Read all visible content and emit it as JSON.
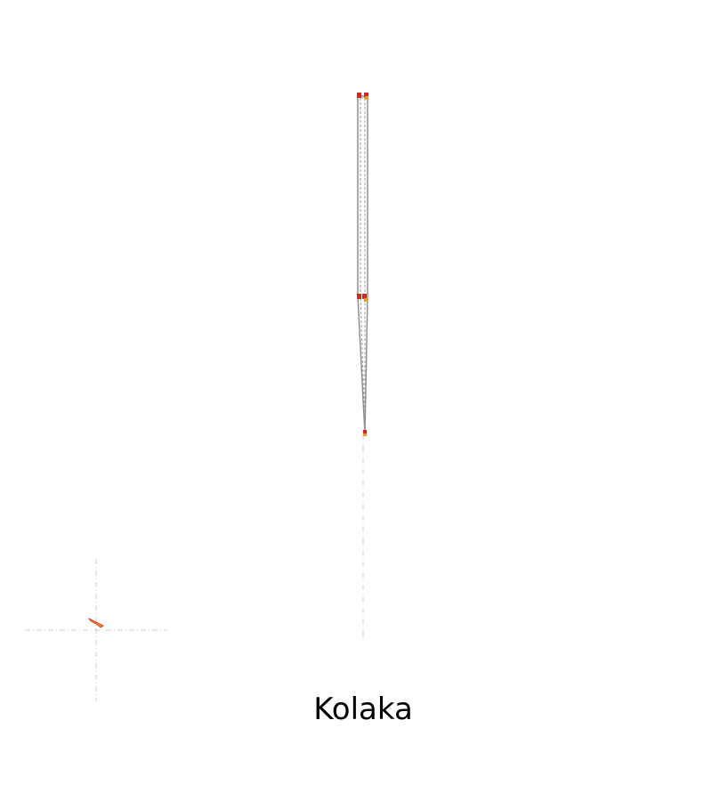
{
  "title": "Kolaka",
  "colors": {
    "outline": "#8a8a8a",
    "guide": "#cfcfcf",
    "marker_red": "#e3201b",
    "marker_orange": "#f39a1e",
    "label": "#000000"
  }
}
